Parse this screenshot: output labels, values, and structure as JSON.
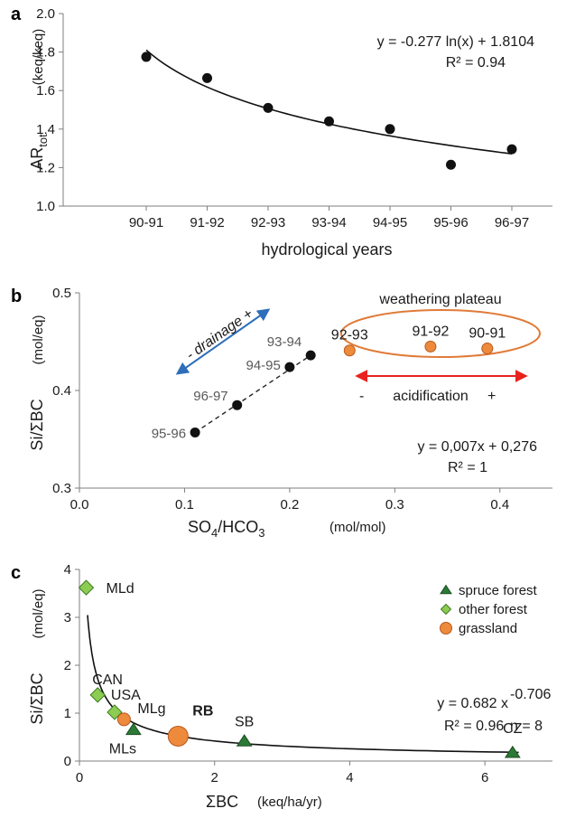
{
  "colors": {
    "axis": "#7f7f7f",
    "text": "#1a1a1a",
    "year_label": "#595959",
    "orange": "#e07b39",
    "orange_fill": "#ee8a3c",
    "blue": "#2e6fba",
    "red": "#e8221e",
    "dark_green": "#2a7a35",
    "light_green": "#8ccc52",
    "light_green_edge": "#3f7d22"
  },
  "chart_data": [
    {
      "panel": "a",
      "type": "scatter",
      "xlabel": "hydrological years",
      "ylabel": "AR",
      "ylabel_sub": "tot",
      "ylabel_unit": "(keq/keq)",
      "categories": [
        "90-91",
        "91-92",
        "92-93",
        "93-94",
        "94-95",
        "95-96",
        "96-97"
      ],
      "values": [
        1.775,
        1.665,
        1.51,
        1.44,
        1.4,
        1.215,
        1.295
      ],
      "ylim": [
        1.0,
        2.0
      ],
      "yticks": [
        "1.0",
        "1.2",
        "1.4",
        "1.6",
        "1.8",
        "2.0"
      ],
      "trend": {
        "kind": "log",
        "a": -0.277,
        "b": 1.8104
      },
      "equation": "y = -0.277 ln(x) + 1.8104",
      "r2_text": "R² = 0.94"
    },
    {
      "panel": "b",
      "type": "scatter",
      "xlabel": "SO",
      "xlabel_parts": [
        "4",
        "/HCO",
        "3"
      ],
      "xlabel_unit": "(mol/mol)",
      "ylabel": "Si/ΣBC",
      "ylabel_unit": "(mol/eq)",
      "xlim": [
        0.0,
        0.45
      ],
      "ylim": [
        0.3,
        0.5
      ],
      "xticks": [
        "0.0",
        "0.1",
        "0.2",
        "0.3",
        "0.4"
      ],
      "yticks": [
        "0.3",
        "0.4",
        "0.5"
      ],
      "series": [
        {
          "points": [
            {
              "x": 0.11,
              "y": 0.357,
              "label": "95-96"
            },
            {
              "x": 0.15,
              "y": 0.385,
              "label": "96-97"
            },
            {
              "x": 0.2,
              "y": 0.424,
              "label": "94-95"
            },
            {
              "x": 0.22,
              "y": 0.436,
              "label": "93-94"
            }
          ]
        },
        {
          "points": [
            {
              "x": 0.257,
              "y": 0.441,
              "label": "92-93"
            },
            {
              "x": 0.334,
              "y": 0.445,
              "label": "91-92"
            },
            {
              "x": 0.388,
              "y": 0.443,
              "label": "90-91"
            }
          ]
        }
      ],
      "annotations": {
        "plateau": "weathering  plateau",
        "drainage_minus": "-",
        "drainage_word": "drainage",
        "drainage_plus": "+",
        "acid_minus": "-",
        "acid_word": "acidification",
        "acid_plus": "+"
      },
      "equation": "y = 0,007x + 0,276",
      "r2_text": "R² = 1"
    },
    {
      "panel": "c",
      "type": "scatter",
      "xlabel": "ΣBC",
      "xlabel_unit": "(keq/ha/yr)",
      "ylabel": "Si/ΣBC",
      "ylabel_unit": "(mol/eq)",
      "xlim": [
        0,
        7
      ],
      "ylim": [
        0,
        4
      ],
      "xticks": [
        "0",
        "2",
        "4",
        "6"
      ],
      "yticks": [
        "0",
        "1",
        "2",
        "3",
        "4"
      ],
      "legend": [
        "spruce forest",
        "other forest",
        "grassland"
      ],
      "legend_position": "top-right",
      "series": [
        {
          "name": "spruce forest",
          "points": [
            {
              "x": 0.8,
              "y": 0.65,
              "label": "MLs"
            },
            {
              "x": 2.44,
              "y": 0.41,
              "label": "SB"
            },
            {
              "x": 6.41,
              "y": 0.17,
              "label": "CZ"
            }
          ]
        },
        {
          "name": "other forest",
          "points": [
            {
              "x": 0.1,
              "y": 3.62,
              "label": "MLd"
            },
            {
              "x": 0.27,
              "y": 1.38,
              "label": "CAN"
            },
            {
              "x": 0.52,
              "y": 1.02,
              "label": "USA"
            }
          ]
        },
        {
          "name": "grassland",
          "points": [
            {
              "x": 0.66,
              "y": 0.87,
              "label": "MLg"
            },
            {
              "x": 1.46,
              "y": 0.52,
              "label": "RB"
            }
          ]
        }
      ],
      "trend": {
        "kind": "power",
        "a": 0.682,
        "b": -0.706
      },
      "equation": "y = 0.682 x",
      "exponent": "-0.706",
      "r2_text": "R² = 0.96",
      "n_text": "n = 8"
    }
  ]
}
